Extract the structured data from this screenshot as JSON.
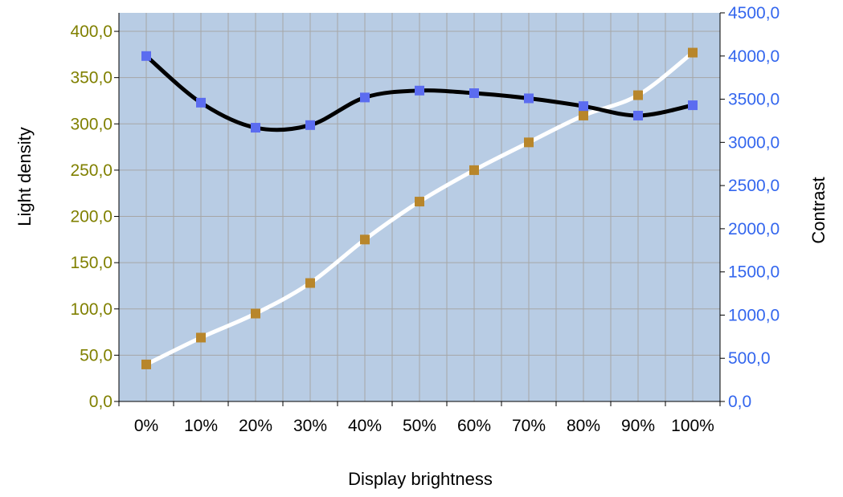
{
  "colors": {
    "plot_bg": "#b8cce4",
    "grid": "#a6a6a6",
    "left_axis_text": "#808000",
    "right_axis_text": "#3366ee",
    "light_density_line": "#ffffff",
    "light_density_marker": "#b8862b",
    "contrast_line": "#000000",
    "contrast_marker": "#5b6cf0"
  },
  "chart_data": {
    "type": "line",
    "xlabel": "Display brightness",
    "ylabel_left": "Light density",
    "ylabel_right": "Contrast",
    "categories": [
      "0%",
      "10%",
      "20%",
      "30%",
      "40%",
      "50%",
      "60%",
      "70%",
      "80%",
      "90%",
      "100%"
    ],
    "y_left": {
      "lim": [
        0,
        420
      ],
      "ticks": [
        0,
        50,
        100,
        150,
        200,
        250,
        300,
        350,
        400
      ],
      "tick_labels": [
        "0,0",
        "50,0",
        "100,0",
        "150,0",
        "200,0",
        "250,0",
        "300,0",
        "350,0",
        "400,0"
      ]
    },
    "y_right": {
      "lim": [
        0,
        4500
      ],
      "ticks": [
        0,
        500,
        1000,
        1500,
        2000,
        2500,
        3000,
        3500,
        4000,
        4500
      ],
      "tick_labels": [
        "0,0",
        "500,0",
        "1000,0",
        "1500,0",
        "2000,0",
        "2500,0",
        "3000,0",
        "3500,0",
        "4000,0",
        "4500,0"
      ]
    },
    "grid": true,
    "legend": "none",
    "series": [
      {
        "axis": "left",
        "values": [
          40,
          69,
          95,
          128,
          175,
          216,
          250,
          280,
          309,
          331,
          377
        ]
      },
      {
        "axis": "right",
        "values": [
          4000,
          3460,
          3170,
          3200,
          3520,
          3600,
          3570,
          3510,
          3420,
          3310,
          3430
        ]
      }
    ]
  }
}
